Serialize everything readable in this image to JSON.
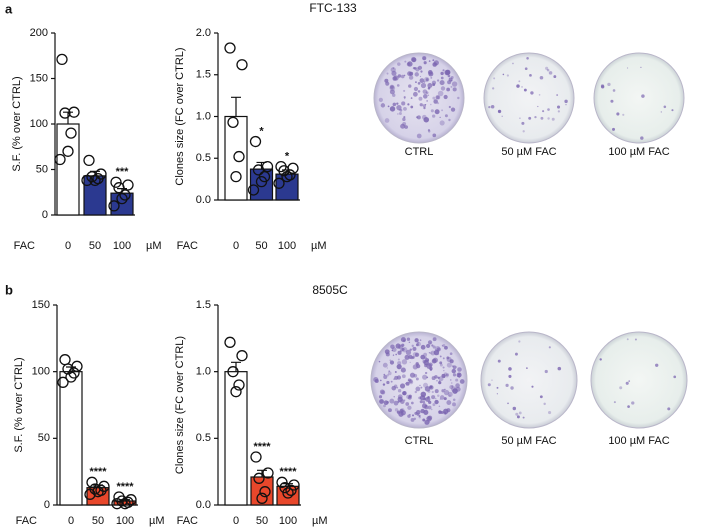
{
  "panels": [
    {
      "label": "a",
      "title": "FTC-133",
      "plates": [
        "CTRL",
        "50 µM FAC",
        "100 µM FAC"
      ]
    },
    {
      "label": "b",
      "title": "8505C",
      "plates": [
        "CTRL",
        "50 µM FAC",
        "100 µM FAC"
      ]
    }
  ],
  "chart_data": [
    {
      "type": "bar",
      "ylabel": "S.F. (% over CTRL)",
      "xlabel": "FAC",
      "xunit": "µM",
      "categories": [
        "0",
        "50",
        "100"
      ],
      "values": [
        100,
        43,
        24
      ],
      "errors": [
        13,
        5,
        5
      ],
      "colors": [
        "#ffffff",
        "#2b3990",
        "#2b3990"
      ],
      "points": [
        [
          171,
          113,
          112,
          90,
          70,
          61
        ],
        [
          60,
          45,
          42,
          40,
          38,
          38
        ],
        [
          36,
          33,
          30,
          22,
          18,
          10
        ]
      ],
      "significance": [
        null,
        null,
        "***"
      ],
      "ylim": [
        0,
        200
      ],
      "yticks": [
        0,
        50,
        100,
        150,
        200
      ]
    },
    {
      "type": "bar",
      "ylabel": "Clones size (FC over CTRL)",
      "xlabel": "FAC",
      "xunit": "µM",
      "categories": [
        "0",
        "50",
        "100"
      ],
      "values": [
        1.0,
        0.37,
        0.31
      ],
      "errors": [
        0.23,
        0.08,
        0.05
      ],
      "colors": [
        "#ffffff",
        "#2b3990",
        "#2b3990"
      ],
      "points": [
        [
          1.82,
          1.62,
          0.93,
          0.52,
          0.28
        ],
        [
          0.7,
          0.4,
          0.36,
          0.28,
          0.22,
          0.12
        ],
        [
          0.4,
          0.38,
          0.35,
          0.3,
          0.28,
          0.2
        ]
      ],
      "significance": [
        null,
        "*",
        "*"
      ],
      "ylim": [
        0,
        2.0
      ],
      "yticks": [
        {
          "value": 0,
          "label": "0.0"
        },
        {
          "value": 0.5,
          "label": "0.5"
        },
        {
          "value": 1,
          "label": "1.0"
        },
        {
          "value": 1.5,
          "label": "1.5"
        },
        {
          "value": 2,
          "label": "2.0"
        }
      ]
    },
    {
      "type": "bar",
      "ylabel": "S.F. (% over CTRL)",
      "xlabel": "FAC",
      "xunit": "µM",
      "categories": [
        "0",
        "50",
        "100"
      ],
      "values": [
        100,
        13,
        3
      ],
      "errors": [
        3.5,
        2,
        1
      ],
      "colors": [
        "#ffffff",
        "#e8472b",
        "#e8472b"
      ],
      "points": [
        [
          109,
          104,
          102,
          99,
          96,
          92
        ],
        [
          17,
          14,
          12,
          11,
          10,
          8
        ],
        [
          6,
          4,
          3,
          2,
          1,
          1
        ]
      ],
      "significance": [
        null,
        "****",
        "****"
      ],
      "ylim": [
        0,
        150
      ],
      "yticks": [
        0,
        50,
        100,
        150
      ]
    },
    {
      "type": "bar",
      "ylabel": "Clones size (FC over CTRL)",
      "xlabel": "FAC",
      "xunit": "µM",
      "categories": [
        "0",
        "50",
        "100"
      ],
      "values": [
        1.0,
        0.21,
        0.14
      ],
      "errors": [
        0.07,
        0.05,
        0.02
      ],
      "colors": [
        "#ffffff",
        "#e8472b",
        "#e8472b"
      ],
      "points": [
        [
          1.22,
          1.12,
          1.0,
          0.9,
          0.85
        ],
        [
          0.36,
          0.24,
          0.2,
          0.1,
          0.05
        ],
        [
          0.17,
          0.15,
          0.13,
          0.11,
          0.09
        ]
      ],
      "significance": [
        null,
        "****",
        "****"
      ],
      "ylim": [
        0,
        1.5
      ],
      "yticks": [
        {
          "value": 0,
          "label": "0.0"
        },
        {
          "value": 0.5,
          "label": "0.5"
        },
        {
          "value": 1,
          "label": "1.0"
        },
        {
          "value": 1.5,
          "label": "1.5"
        }
      ]
    }
  ]
}
